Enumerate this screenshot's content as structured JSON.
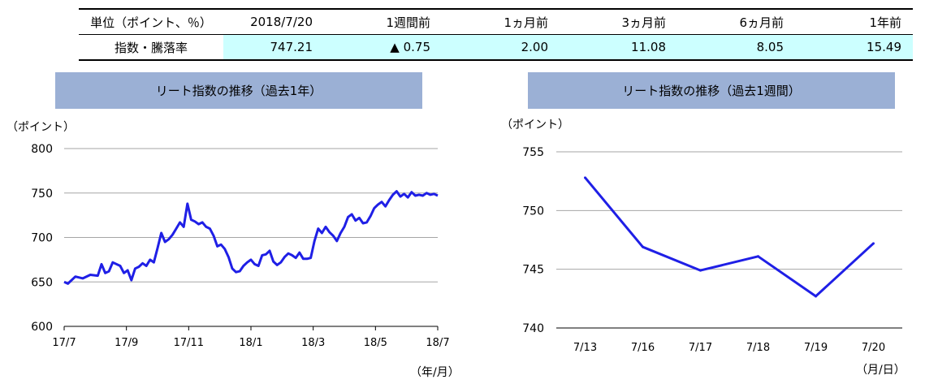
{
  "summary": {
    "headers": [
      "単位（ポイント、％）",
      "2018/7/20",
      "1週間前",
      "1ヵ月前",
      "3ヵ月前",
      "6ヵ月前",
      "1年前"
    ],
    "row_label": "指数・騰落率",
    "values": [
      "747.21",
      "▲ 0.75",
      "2.00",
      "11.08",
      "8.05",
      "15.49"
    ]
  },
  "chart_data": [
    {
      "type": "line",
      "title": "リート指数の推移（過去1年）",
      "ylabel": "（ポイント）",
      "xlabel": "（年/月）",
      "ylim": [
        600,
        800
      ],
      "yticks": [
        "800",
        "750",
        "700",
        "650",
        "600"
      ],
      "xticks": [
        "17/7",
        "17/9",
        "17/11",
        "18/1",
        "18/3",
        "18/5",
        "18/7"
      ],
      "grid": true,
      "color": "#1f1fe6",
      "x": [
        0,
        0.01,
        0.03,
        0.05,
        0.07,
        0.09,
        0.1,
        0.11,
        0.12,
        0.13,
        0.15,
        0.16,
        0.17,
        0.18,
        0.19,
        0.2,
        0.21,
        0.22,
        0.23,
        0.24,
        0.25,
        0.26,
        0.27,
        0.28,
        0.29,
        0.3,
        0.31,
        0.32,
        0.33,
        0.34,
        0.35,
        0.36,
        0.37,
        0.38,
        0.39,
        0.4,
        0.41,
        0.42,
        0.43,
        0.44,
        0.45,
        0.46,
        0.47,
        0.48,
        0.49,
        0.5,
        0.51,
        0.52,
        0.53,
        0.54,
        0.55,
        0.56,
        0.57,
        0.58,
        0.59,
        0.6,
        0.61,
        0.62,
        0.63,
        0.64,
        0.65,
        0.66,
        0.67,
        0.68,
        0.69,
        0.7,
        0.71,
        0.72,
        0.73,
        0.74,
        0.75,
        0.76,
        0.77,
        0.78,
        0.79,
        0.8,
        0.81,
        0.82,
        0.83,
        0.84,
        0.85,
        0.86,
        0.87,
        0.88,
        0.89,
        0.9,
        0.91,
        0.92,
        0.93,
        0.94,
        0.95,
        0.96,
        0.97,
        0.98,
        0.99,
        1.0
      ],
      "values": [
        650,
        648,
        656,
        654,
        658,
        657,
        670,
        660,
        662,
        672,
        668,
        660,
        663,
        652,
        665,
        667,
        671,
        668,
        675,
        672,
        688,
        705,
        695,
        698,
        703,
        710,
        717,
        712,
        738,
        720,
        718,
        715,
        717,
        712,
        710,
        702,
        690,
        692,
        687,
        678,
        665,
        661,
        662,
        668,
        672,
        675,
        670,
        668,
        680,
        681,
        685,
        673,
        669,
        672,
        678,
        682,
        680,
        677,
        683,
        676,
        676,
        677,
        696,
        710,
        705,
        712,
        706,
        702,
        696,
        705,
        712,
        723,
        726,
        719,
        722,
        716,
        717,
        724,
        733,
        737,
        740,
        735,
        742,
        748,
        752,
        746,
        749,
        745,
        751,
        747,
        748,
        747,
        750,
        748,
        749,
        747
      ]
    },
    {
      "type": "line",
      "title": "リート指数の推移（過去1週間）",
      "ylabel": "（ポイント）",
      "xlabel": "（月/日）",
      "ylim": [
        740,
        755
      ],
      "yticks": [
        "755",
        "750",
        "745",
        "740"
      ],
      "categories": [
        "7/13",
        "7/16",
        "7/17",
        "7/18",
        "7/19",
        "7/20"
      ],
      "values": [
        752.8,
        746.9,
        744.9,
        746.1,
        742.7,
        747.2
      ],
      "grid": true,
      "color": "#1f1fe6"
    }
  ]
}
